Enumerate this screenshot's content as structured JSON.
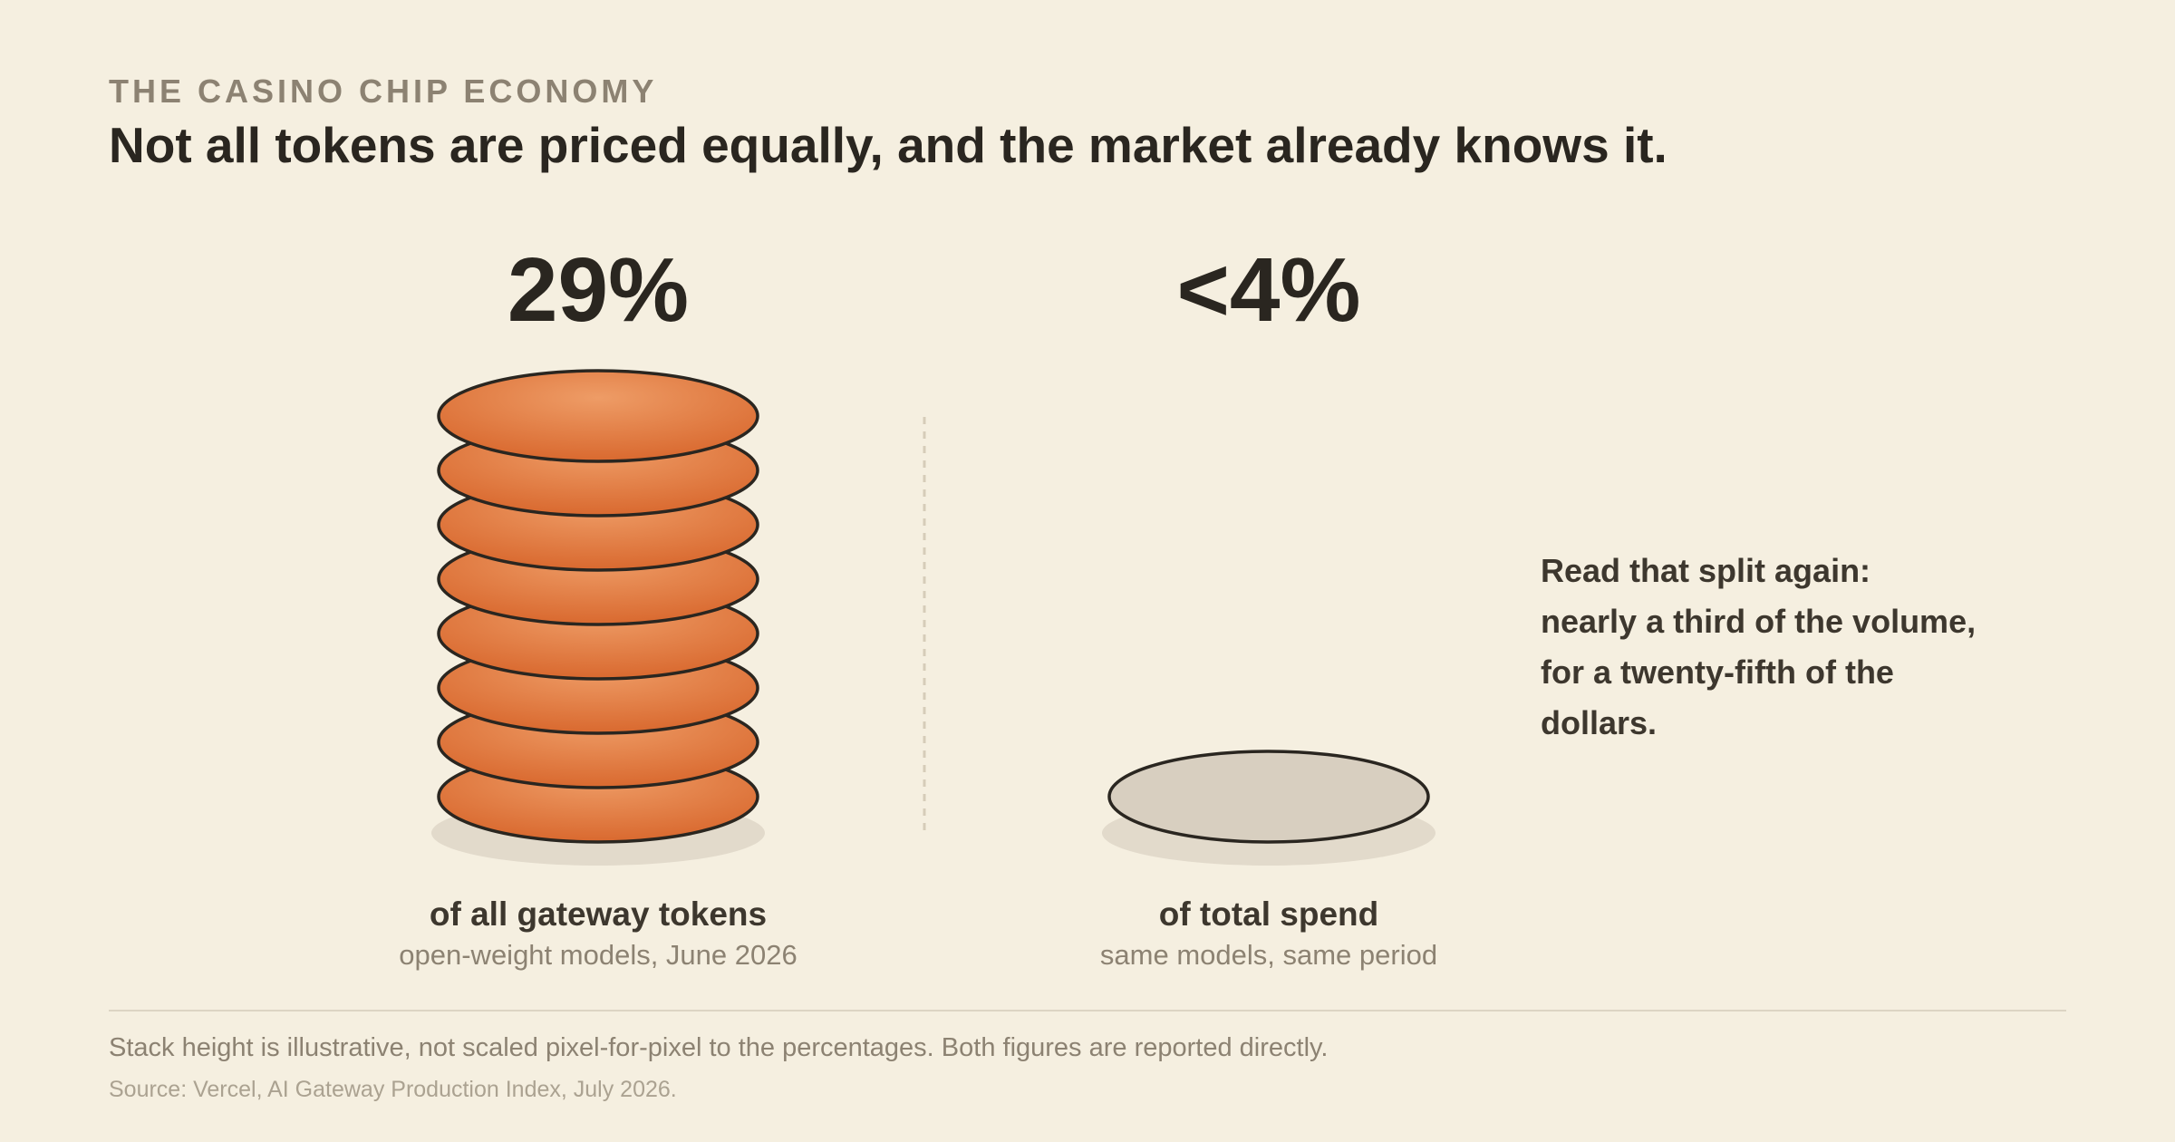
{
  "header": {
    "eyebrow": "THE CASINO CHIP ECONOMY",
    "headline": "Not all tokens are priced equally, and the market already knows it."
  },
  "chart_data": {
    "type": "bar",
    "title": "Not all tokens are priced equally, and the market already knows it.",
    "categories": [
      "of all gateway tokens",
      "of total spend"
    ],
    "values": [
      29,
      4
    ],
    "value_labels": [
      "29%",
      "<4%"
    ],
    "sublabels": [
      "open-weight models, June 2026",
      "same models, same period"
    ],
    "chip_counts": [
      8,
      1
    ],
    "unit": "%",
    "grid": false,
    "legend": "none"
  },
  "callout": {
    "lines": [
      "Read that split again:",
      "nearly a third of the volume,",
      "for a twenty-fifth of the",
      "dollars."
    ]
  },
  "footer": {
    "note": "Stack height is illustrative, not scaled pixel-for-pixel to the percentages. Both figures are reported directly.",
    "source": "Source: Vercel, AI Gateway Production Index, July 2026."
  },
  "colors": {
    "background": "#f5efe0",
    "chip_fill": "#d9692f",
    "chip_highlight": "#ee9c66",
    "chip_outline": "#2a2620",
    "muted_chip": "#d8cfc0",
    "shadow": "#e2dacb"
  }
}
